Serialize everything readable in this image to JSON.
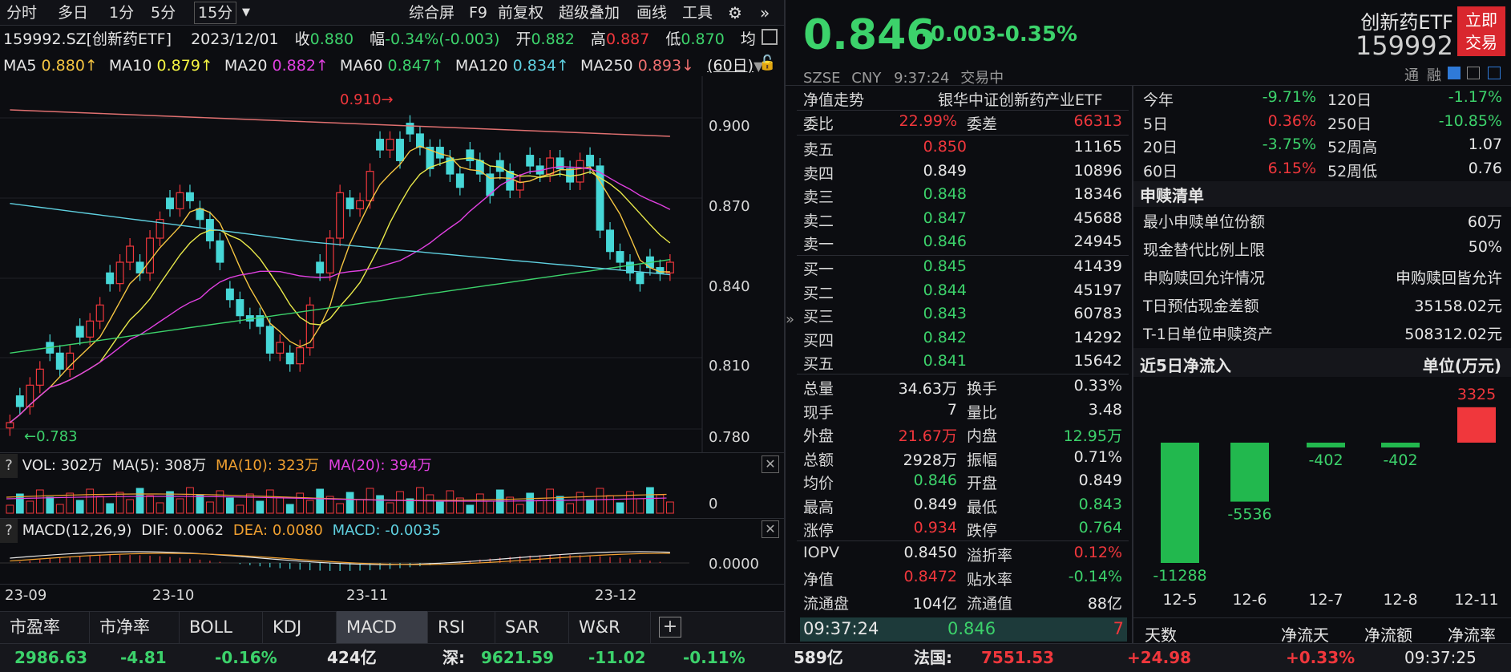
{
  "toolbar": {
    "tabs": [
      "分时",
      "多日",
      "1分",
      "5分",
      "15分"
    ],
    "dropdown": "▼",
    "right": [
      "综合屏",
      "F9",
      "前复权",
      "超级叠加",
      "画线",
      "工具"
    ]
  },
  "info": {
    "code": "159992.SZ[创新药ETF]",
    "date": "2023/12/01",
    "close_label": "收",
    "close": "0.880",
    "amp_label": "幅",
    "amp": "-0.34%(-0.003)",
    "open_label": "开",
    "open": "0.882",
    "high_label": "高",
    "high": "0.887",
    "low_label": "低",
    "low": "0.870",
    "avg_label": "均"
  },
  "ma": {
    "ma5": "MA5",
    "ma5v": "0.880↑",
    "ma10": "MA10",
    "ma10v": "0.879↑",
    "ma20": "MA20",
    "ma20v": "0.882↑",
    "ma60": "MA60",
    "ma60v": "0.847↑",
    "ma120": "MA120",
    "ma120v": "0.834↑",
    "ma250": "MA250",
    "ma250v": "0.893↓",
    "period": "(60日)"
  },
  "chart": {
    "y_ticks": [
      "0.900",
      "0.870",
      "0.840",
      "0.810",
      "0.780"
    ],
    "high_label": "0.910",
    "low_label": "0.783",
    "x_ticks": [
      "23-09",
      "23-10",
      "23-11",
      "23-12"
    ],
    "vol_zero": "0",
    "macd_zero": "0.0000"
  },
  "vol": {
    "q": "?",
    "label": "VOL: 302万",
    "ma5": "MA(5): 308万",
    "ma10": "MA(10): 323万",
    "ma20": "MA(20): 394万"
  },
  "macd": {
    "q": "?",
    "label": "MACD(12,26,9)",
    "dif": "DIF: 0.0062",
    "dea": "DEA: 0.0080",
    "macd": "MACD: -0.0035"
  },
  "bottom_tabs": [
    "市盈率",
    "市净率",
    "BOLL",
    "KDJ",
    "MACD",
    "RSI",
    "SAR",
    "W&R"
  ],
  "quote": {
    "price": "0.846",
    "change": "-0.003",
    "pct": "-0.35%",
    "exchange": "SZSE",
    "currency": "CNY",
    "time": "9:37:24",
    "status": "交易中",
    "name": "创新药ETF",
    "code": "159992",
    "trade_btn1": "立即",
    "trade_btn2": "交易",
    "tong": "通",
    "rong": "融"
  },
  "book": {
    "title": "净值走势",
    "fund": "银华中证创新药产业ETF",
    "wb_label": "委比",
    "wb": "22.99%",
    "wc_label": "委差",
    "wc": "66313",
    "asks": [
      {
        "l": "卖五",
        "p": "0.850",
        "v": "11165",
        "c": "r"
      },
      {
        "l": "卖四",
        "p": "0.849",
        "v": "10896",
        "c": "w"
      },
      {
        "l": "卖三",
        "p": "0.848",
        "v": "18346",
        "c": "g"
      },
      {
        "l": "卖二",
        "p": "0.847",
        "v": "45688",
        "c": "g"
      },
      {
        "l": "卖一",
        "p": "0.846",
        "v": "24945",
        "c": "g"
      }
    ],
    "bids": [
      {
        "l": "买一",
        "p": "0.845",
        "v": "41439"
      },
      {
        "l": "买二",
        "p": "0.844",
        "v": "45197"
      },
      {
        "l": "买三",
        "p": "0.843",
        "v": "60783"
      },
      {
        "l": "买四",
        "p": "0.842",
        "v": "14292"
      },
      {
        "l": "买五",
        "p": "0.841",
        "v": "15642"
      }
    ]
  },
  "stats": [
    {
      "l1": "总量",
      "v1": "34.63万",
      "c1": "w",
      "l2": "换手",
      "v2": "0.33%",
      "c2": "w"
    },
    {
      "l1": "现手",
      "v1": "7",
      "c1": "w",
      "l2": "量比",
      "v2": "3.48",
      "c2": "w"
    },
    {
      "l1": "外盘",
      "v1": "21.67万",
      "c1": "r",
      "l2": "内盘",
      "v2": "12.95万",
      "c2": "g"
    },
    {
      "l1": "总额",
      "v1": "2928万",
      "c1": "w",
      "l2": "振幅",
      "v2": "0.71%",
      "c2": "w"
    },
    {
      "l1": "均价",
      "v1": "0.846",
      "c1": "g",
      "l2": "开盘",
      "v2": "0.849",
      "c2": "w"
    },
    {
      "l1": "最高",
      "v1": "0.849",
      "c1": "w",
      "l2": "最低",
      "v2": "0.843",
      "c2": "g"
    },
    {
      "l1": "涨停",
      "v1": "0.934",
      "c1": "r",
      "l2": "跌停",
      "v2": "0.764",
      "c2": "g"
    }
  ],
  "iopv": [
    {
      "l1": "IOPV",
      "v1": "0.8450",
      "c1": "w",
      "l2": "溢折率",
      "v2": "0.12%",
      "c2": "r"
    },
    {
      "l1": "净值",
      "v1": "0.8472",
      "c1": "r",
      "l2": "贴水率",
      "v2": "-0.14%",
      "c2": "g"
    },
    {
      "l1": "流通盘",
      "v1": "104亿",
      "c1": "w",
      "l2": "流通值",
      "v2": "88亿",
      "c2": "w"
    }
  ],
  "tick": {
    "time": "09:37:24",
    "price": "0.846",
    "vol": "7"
  },
  "perf": [
    {
      "l1": "今年",
      "v1": "-9.71%",
      "c1": "g",
      "l2": "120日",
      "v2": "-1.17%",
      "c2": "g"
    },
    {
      "l1": "5日",
      "v1": "0.36%",
      "c1": "r",
      "l2": "250日",
      "v2": "-10.85%",
      "c2": "g"
    },
    {
      "l1": "20日",
      "v1": "-3.75%",
      "c1": "g",
      "l2": "52周高",
      "v2": "1.07",
      "c2": "w"
    },
    {
      "l1": "60日",
      "v1": "6.15%",
      "c1": "r",
      "l2": "52周低",
      "v2": "0.76",
      "c2": "w"
    }
  ],
  "redeem": {
    "title": "申赎清单",
    "rows": [
      {
        "l": "最小申赎单位份额",
        "v": "60万"
      },
      {
        "l": "现金替代比例上限",
        "v": "50%"
      },
      {
        "l": "申购赎回允许情况",
        "v": "申购赎回皆允许"
      },
      {
        "l": "T日预估现金差额",
        "v": "35158.02元"
      },
      {
        "l": "T-1日单位申赎资产",
        "v": "508312.02元"
      }
    ]
  },
  "flow": {
    "title": "近5日净流入",
    "unit": "单位(万元)",
    "footer": [
      "天数",
      "净流天",
      "净流额",
      "净流率"
    ]
  },
  "chart_data": {
    "type": "bar",
    "categories": [
      "12-5",
      "12-6",
      "12-7",
      "12-8",
      "12-11"
    ],
    "values": [
      -11288,
      -5536,
      -402,
      -402,
      3325
    ],
    "labels": [
      "-11288",
      "-5536",
      "-402",
      "-402",
      "3325"
    ]
  },
  "status": {
    "sh": "2986.63",
    "sh_ch": "-4.81",
    "sh_pct": "-0.16%",
    "sh_amt": "424亿",
    "sz_label": "深:",
    "sz": "9621.59",
    "sz_ch": "-11.02",
    "sz_pct": "-0.11%",
    "sz_amt": "589亿",
    "fr_label": "法国:",
    "fr": "7551.53",
    "fr_ch": "+24.98",
    "fr_pct": "+0.33%",
    "clock": "09:37:25"
  },
  "colors": {
    "up": "#f0373c",
    "down": "#3cd26b",
    "candle_down": "#46d7d7",
    "bg": "#0c0d11"
  }
}
